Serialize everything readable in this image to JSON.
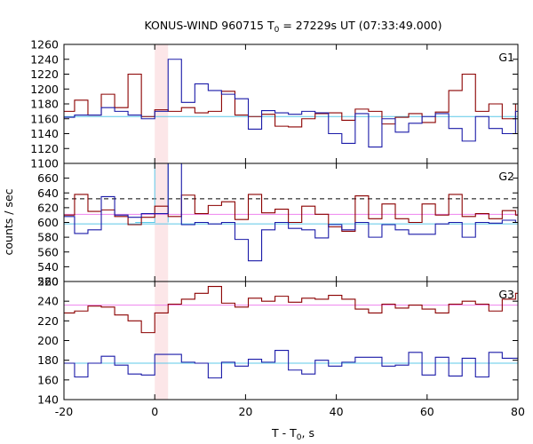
{
  "chart_data": {
    "type": "line",
    "title": {
      "prefix": "KONUS-WIND 960715 T",
      "sub": "0",
      "suffix": " = 27229s UT (07:33:49.000)"
    },
    "xlabel": {
      "prefix": "T - T",
      "sub": "0",
      "suffix": ", s"
    },
    "ylabel": "counts / sec",
    "xlim": [
      -20,
      80
    ],
    "xticks": [
      -20,
      0,
      20,
      40,
      60,
      80
    ],
    "highlight": {
      "x_start": 0.0,
      "x_end": 2.944,
      "color": "#fce6e8"
    },
    "colors": {
      "red": "#8b0000",
      "blue": "#1a1aa8",
      "cyan": "#5cc8e8",
      "pink": "#ee82ee",
      "box": "#000000"
    },
    "panels": [
      {
        "label": "G1",
        "ylim": [
          1100,
          1260
        ],
        "yticks": [
          1100,
          1120,
          1140,
          1160,
          1180,
          1200,
          1220,
          1240,
          1260
        ],
        "bin_edges": [
          -20.608,
          -17.664,
          -14.72,
          -11.776,
          -8.832,
          -5.888,
          -2.944,
          0.0,
          2.944,
          5.888,
          8.832,
          11.776,
          14.72,
          17.664,
          20.608,
          23.552,
          26.496,
          29.44,
          32.384,
          35.328,
          38.272,
          41.216,
          44.16,
          47.104,
          50.048,
          52.992,
          55.936,
          58.88,
          61.824,
          64.768,
          67.712,
          70.656,
          73.6,
          76.544,
          79.488,
          82.432
        ],
        "series": [
          {
            "color_key": "red",
            "values": [
              1170,
              1185,
              1165,
              1193,
              1175,
              1220,
              1163,
              1172,
              1170,
              1175,
              1168,
              1170,
              1197,
              1165,
              1163,
              1166,
              1150,
              1149,
              1160,
              1167,
              1168,
              1158,
              1173,
              1170,
              1153,
              1162,
              1167,
              1155,
              1169,
              1198,
              1220,
              1170,
              1180,
              1160,
              1180
            ]
          },
          {
            "color_key": "blue",
            "values": [
              1162,
              1165,
              1165,
              1175,
              1170,
              1165,
              1160,
              1170,
              1240,
              1182,
              1207,
              1198,
              1193,
              1187,
              1146,
              1171,
              1168,
              1166,
              1170,
              1168,
              1140,
              1127,
              1167,
              1122,
              1160,
              1142,
              1154,
              1163,
              1167,
              1147,
              1130,
              1163,
              1147,
              1140,
              1170
            ]
          }
        ],
        "fits": [
          {
            "color_key": "cyan",
            "value": 1163,
            "style": "solid"
          }
        ]
      },
      {
        "label": "G2",
        "ylim": [
          520,
          680
        ],
        "yticks": [
          520,
          540,
          560,
          580,
          600,
          620,
          640,
          660
        ],
        "bin_edges": [
          -20.608,
          -17.664,
          -14.72,
          -11.776,
          -8.832,
          -5.888,
          -2.944,
          0.0,
          2.944,
          5.888,
          8.832,
          11.776,
          14.72,
          17.664,
          20.608,
          23.552,
          26.496,
          29.44,
          32.384,
          35.328,
          38.272,
          41.216,
          44.16,
          47.104,
          50.048,
          52.992,
          55.936,
          58.88,
          61.824,
          64.768,
          67.712,
          70.656,
          73.6,
          76.544,
          79.488,
          82.432
        ],
        "series": [
          {
            "color_key": "red",
            "values": [
              610,
              638,
              615,
              617,
              608,
              597,
              607,
              622,
              608,
              637,
              612,
              623,
              628,
              604,
              638,
              613,
              618,
              600,
              622,
              611,
              594,
              588,
              636,
              605,
              625,
              605,
              600,
              625,
              610,
              638,
              608,
              612,
              605,
              616,
              610
            ]
          },
          {
            "color_key": "blue",
            "values": [
              608,
              585,
              590,
              635,
              610,
              607,
              612,
              612,
              680,
              597,
              600,
              598,
              600,
              577,
              548,
              590,
              600,
              592,
              590,
              579,
              597,
              590,
              600,
              580,
              597,
              590,
              584,
              584,
              598,
              600,
              580,
              600,
              599,
              603,
              600
            ]
          }
        ],
        "fits": [
          {
            "color_key": "box",
            "value": 632,
            "style": "dashed"
          },
          {
            "color_key": "pink",
            "value": 611,
            "style": "solid"
          },
          {
            "color_key": "cyan",
            "value": 598,
            "style": "solid"
          },
          {
            "color_key": "cyan",
            "value": 600,
            "style": "box",
            "x_start": 0.0,
            "x_end": 2.944,
            "top": 687
          }
        ]
      },
      {
        "label": "G3",
        "ylim": [
          140,
          260
        ],
        "yticks": [
          140,
          160,
          180,
          200,
          220,
          240,
          260
        ],
        "bin_edges": [
          -20.608,
          -17.664,
          -14.72,
          -11.776,
          -8.832,
          -5.888,
          -2.944,
          0.0,
          2.944,
          5.888,
          8.832,
          11.776,
          14.72,
          17.664,
          20.608,
          23.552,
          26.496,
          29.44,
          32.384,
          35.328,
          38.272,
          41.216,
          44.16,
          47.104,
          50.048,
          52.992,
          55.936,
          58.88,
          61.824,
          64.768,
          67.712,
          70.656,
          73.6,
          76.544,
          79.488,
          82.432
        ],
        "series": [
          {
            "color_key": "red",
            "values": [
              228,
              230,
              235,
              234,
              226,
              220,
              208,
              228,
              237,
              242,
              248,
              255,
              238,
              234,
              243,
              240,
              245,
              239,
              243,
              242,
              246,
              242,
              232,
              228,
              237,
              233,
              236,
              232,
              228,
              237,
              240,
              237,
              230,
              242,
              248
            ]
          },
          {
            "color_key": "blue",
            "values": [
              177,
              163,
              177,
              184,
              175,
              166,
              165,
              186,
              186,
              178,
              177,
              162,
              178,
              174,
              181,
              178,
              190,
              170,
              166,
              180,
              174,
              178,
              183,
              183,
              174,
              175,
              188,
              165,
              183,
              164,
              182,
              163,
              188,
              182,
              182
            ]
          }
        ],
        "fits": [
          {
            "color_key": "pink",
            "value": 236,
            "style": "solid"
          },
          {
            "color_key": "cyan",
            "value": 177,
            "style": "solid"
          }
        ]
      }
    ]
  }
}
